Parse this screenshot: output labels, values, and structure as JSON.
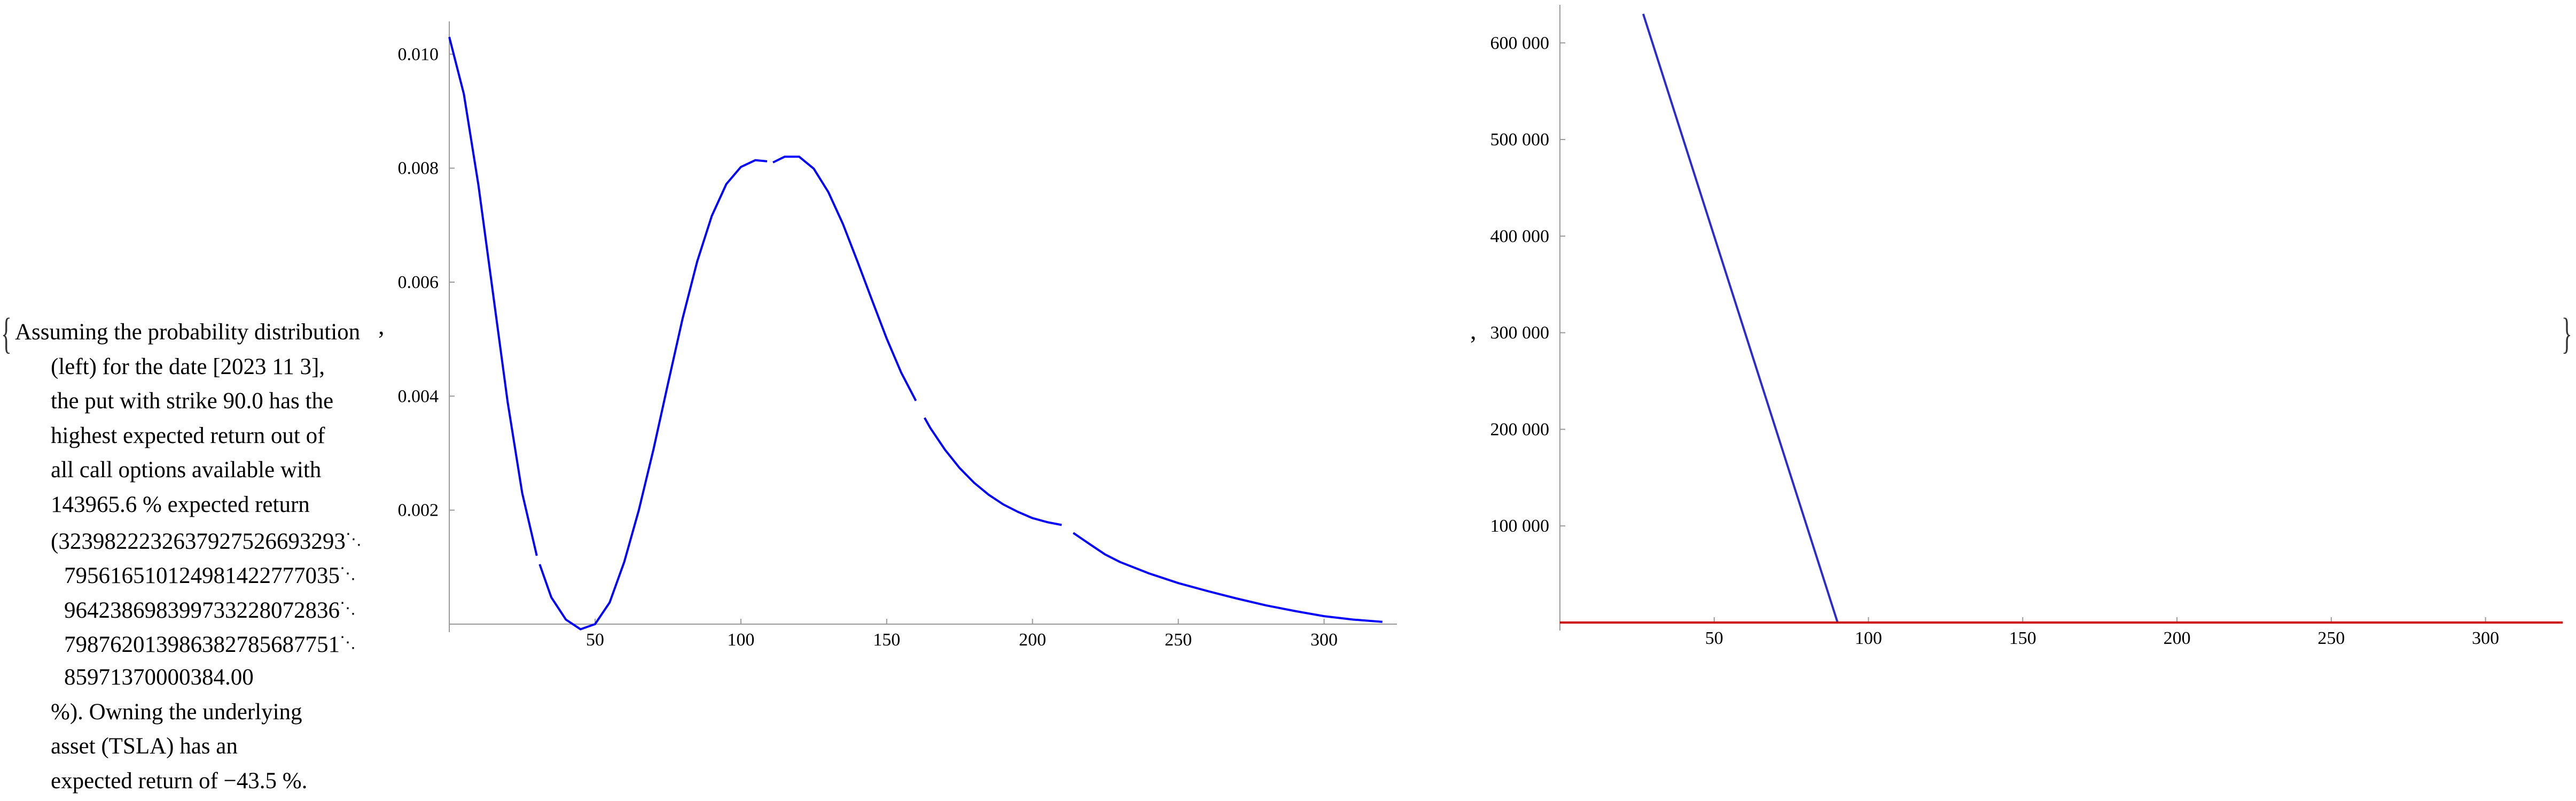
{
  "description": {
    "lines": [
      "Assuming the probability distribution",
      "(left) for the date [2023 11 3],",
      "the put with strike 90.0 has the",
      "highest expected return out of",
      "all call options available with",
      "143965.6 % expected return",
      "(3239822232637927526693293",
      "795616510124981422777035",
      "964238698399733228072836",
      "798762013986382785687751",
      "85971370000384.00",
      "%). Owning the underlying",
      "asset (TSLA) has an",
      "expected return of −43.5 %."
    ],
    "continuation_mark": "⋱"
  },
  "punctuation": {
    "open_brace": "{",
    "close_brace": "}",
    "separator": ","
  },
  "chart_data": [
    {
      "type": "line",
      "title": "",
      "xlabel": "",
      "ylabel": "",
      "xlim": [
        0,
        325
      ],
      "ylim": [
        0,
        0.0105
      ],
      "x_ticks": [
        50,
        100,
        150,
        200,
        250,
        300
      ],
      "y_ticks": [
        0.002,
        0.004,
        0.006,
        0.008,
        0.01
      ],
      "x_tick_labels": [
        "50",
        "100",
        "150",
        "200",
        "250",
        "300"
      ],
      "y_tick_labels": [
        "0.002",
        "0.004",
        "0.006",
        "0.008",
        "0.010"
      ],
      "series": [
        {
          "color": "#0000ff",
          "segments": [
            [
              [
                0,
                0.0103
              ],
              [
                5,
                0.0093
              ],
              [
                10,
                0.0077
              ],
              [
                15,
                0.0058
              ],
              [
                20,
                0.0039
              ],
              [
                25,
                0.0023
              ],
              [
                30,
                0.0012
              ]
            ],
            [
              [
                31,
                0.00105
              ],
              [
                35,
                0.00047
              ],
              [
                40,
                8e-05
              ],
              [
                45,
                -9e-05
              ],
              [
                50,
                0.0
              ],
              [
                55,
                0.00038
              ],
              [
                60,
                0.00109
              ],
              [
                65,
                0.002
              ],
              [
                70,
                0.00306
              ],
              [
                75,
                0.00422
              ],
              [
                80,
                0.00536
              ],
              [
                85,
                0.00636
              ],
              [
                90,
                0.00716
              ],
              [
                95,
                0.00772
              ],
              [
                100,
                0.00802
              ],
              [
                105,
                0.00814
              ],
              [
                109,
                0.00812
              ]
            ],
            [
              [
                111,
                0.0081
              ],
              [
                115,
                0.0082
              ],
              [
                120,
                0.0082
              ],
              [
                125,
                0.00799
              ],
              [
                130,
                0.00758
              ],
              [
                135,
                0.00702
              ],
              [
                140,
                0.00636
              ],
              [
                145,
                0.00568
              ],
              [
                150,
                0.00501
              ],
              [
                155,
                0.00441
              ],
              [
                160,
                0.00392
              ]
            ],
            [
              [
                163,
                0.00362
              ],
              [
                165,
                0.00344
              ],
              [
                170,
                0.00306
              ],
              [
                175,
                0.00274
              ],
              [
                180,
                0.00248
              ],
              [
                185,
                0.00227
              ],
              [
                190,
                0.0021
              ],
              [
                195,
                0.00197
              ],
              [
                200,
                0.00186
              ],
              [
                205,
                0.00179
              ],
              [
                210,
                0.00174
              ]
            ],
            [
              [
                214,
                0.0016
              ],
              [
                220,
                0.00139
              ],
              [
                225,
                0.00122
              ],
              [
                230,
                0.00109
              ],
              [
                240,
                0.00089
              ],
              [
                250,
                0.00072
              ],
              [
                260,
                0.00058
              ],
              [
                270,
                0.00045
              ],
              [
                280,
                0.00033
              ],
              [
                290,
                0.00023
              ],
              [
                300,
                0.00014
              ],
              [
                310,
                8e-05
              ],
              [
                320,
                4e-05
              ]
            ]
          ]
        }
      ]
    },
    {
      "type": "line",
      "title": "",
      "xlabel": "",
      "ylabel": "",
      "xlim": [
        0,
        325
      ],
      "ylim": [
        0,
        635000
      ],
      "x_ticks": [
        50,
        100,
        150,
        200,
        250,
        300
      ],
      "y_ticks": [
        100000,
        200000,
        300000,
        400000,
        500000,
        600000
      ],
      "x_tick_labels": [
        "50",
        "100",
        "150",
        "200",
        "250",
        "300"
      ],
      "y_tick_labels": [
        "100 000",
        "200 000",
        "300 000",
        "400 000",
        "500 000",
        "600 000"
      ],
      "series": [
        {
          "color": "#2b2bd0",
          "points": [
            [
              27,
              630000
            ],
            [
              90,
              0
            ],
            [
              325,
              0
            ]
          ]
        },
        {
          "color": "#cc0000",
          "points": [
            [
              0,
              0
            ],
            [
              325,
              0
            ]
          ]
        }
      ]
    }
  ]
}
